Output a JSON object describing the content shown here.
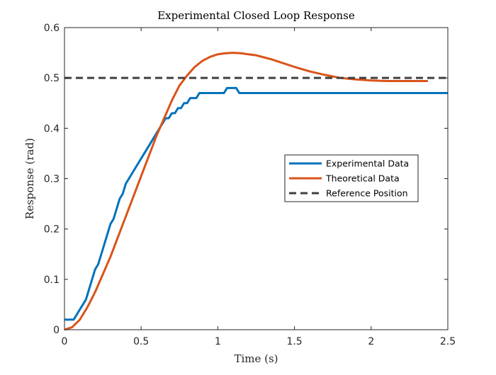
{
  "chart_data": {
    "type": "line",
    "title": "Experimental Closed Loop Response",
    "xlabel": "Time (s)",
    "ylabel": "Response (rad)",
    "xlim": [
      0,
      2.5
    ],
    "ylim": [
      0,
      0.6
    ],
    "xticks": [
      0,
      0.5,
      1,
      1.5,
      2,
      2.5
    ],
    "xtick_labels": [
      "0",
      "0.5",
      "1",
      "1.5",
      "2",
      "2.5"
    ],
    "yticks": [
      0,
      0.1,
      0.2,
      0.3,
      0.4,
      0.5,
      0.6
    ],
    "ytick_labels": [
      "0",
      "0.1",
      "0.2",
      "0.3",
      "0.4",
      "0.5",
      "0.6"
    ],
    "grid": false,
    "box": true,
    "legend_position": "center-right",
    "series": [
      {
        "name": "Experimental Data",
        "color": "#0072BD",
        "style": "solid",
        "x": [
          0,
          0.06,
          0.08,
          0.1,
          0.12,
          0.14,
          0.16,
          0.18,
          0.2,
          0.22,
          0.24,
          0.26,
          0.28,
          0.3,
          0.32,
          0.34,
          0.36,
          0.38,
          0.4,
          0.42,
          0.44,
          0.46,
          0.48,
          0.5,
          0.52,
          0.54,
          0.56,
          0.58,
          0.6,
          0.62,
          0.64,
          0.66,
          0.68,
          0.7,
          0.72,
          0.74,
          0.76,
          0.78,
          0.8,
          0.82,
          0.84,
          0.86,
          0.88,
          0.9,
          1.04,
          1.06,
          1.1,
          1.12,
          1.14,
          1.2,
          1.5,
          2.0,
          2.5
        ],
        "y": [
          0.02,
          0.02,
          0.03,
          0.04,
          0.05,
          0.06,
          0.08,
          0.1,
          0.12,
          0.13,
          0.15,
          0.17,
          0.19,
          0.21,
          0.22,
          0.24,
          0.26,
          0.27,
          0.29,
          0.3,
          0.31,
          0.32,
          0.33,
          0.34,
          0.35,
          0.36,
          0.37,
          0.38,
          0.39,
          0.4,
          0.41,
          0.42,
          0.42,
          0.43,
          0.43,
          0.44,
          0.44,
          0.45,
          0.45,
          0.46,
          0.46,
          0.46,
          0.47,
          0.47,
          0.47,
          0.48,
          0.48,
          0.48,
          0.47,
          0.47,
          0.47,
          0.47,
          0.47
        ]
      },
      {
        "name": "Theoretical Data",
        "color": "#D95319",
        "style": "solid",
        "x": [
          0,
          0.05,
          0.1,
          0.15,
          0.2,
          0.25,
          0.3,
          0.35,
          0.4,
          0.45,
          0.5,
          0.55,
          0.6,
          0.65,
          0.7,
          0.75,
          0.8,
          0.85,
          0.9,
          0.95,
          1.0,
          1.05,
          1.1,
          1.15,
          1.2,
          1.25,
          1.3,
          1.35,
          1.4,
          1.5,
          1.6,
          1.7,
          1.8,
          1.9,
          2.0,
          2.1,
          2.2,
          2.3,
          2.37
        ],
        "y": [
          0.0,
          0.005,
          0.02,
          0.045,
          0.075,
          0.11,
          0.145,
          0.185,
          0.225,
          0.265,
          0.305,
          0.345,
          0.385,
          0.42,
          0.455,
          0.485,
          0.505,
          0.522,
          0.534,
          0.542,
          0.547,
          0.549,
          0.55,
          0.549,
          0.547,
          0.545,
          0.541,
          0.537,
          0.532,
          0.522,
          0.513,
          0.506,
          0.5,
          0.497,
          0.495,
          0.494,
          0.494,
          0.494,
          0.494
        ]
      },
      {
        "name": "Reference Position",
        "color": "#404040",
        "style": "dashed",
        "x": [
          0,
          2.5
        ],
        "y": [
          0.5,
          0.5
        ]
      }
    ]
  }
}
